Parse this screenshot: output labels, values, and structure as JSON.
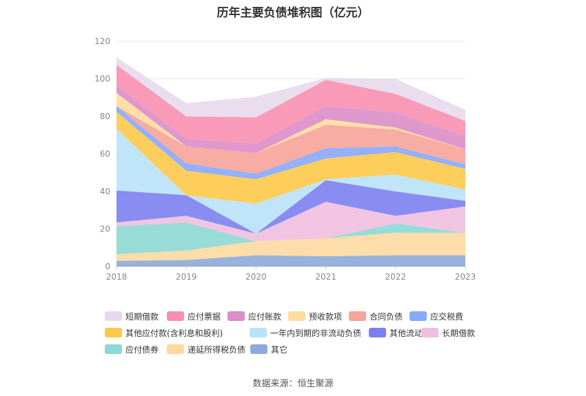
{
  "chart_data": {
    "type": "area",
    "stacked": true,
    "title": "历年主要负债堆积图（亿元）",
    "categories": [
      "2018",
      "2019",
      "2020",
      "2021",
      "2022",
      "2023"
    ],
    "ylim": [
      0,
      120
    ],
    "yticks": [
      0,
      20,
      40,
      60,
      80,
      100,
      120
    ],
    "grid": true,
    "legend_position": "bottom",
    "series": [
      {
        "name": "其它",
        "color": "#8eaad8",
        "values": [
          3,
          3.5,
          6,
          5.5,
          6,
          6
        ]
      },
      {
        "name": "递延所得税负债",
        "color": "#fdd9a0",
        "values": [
          3.5,
          5,
          7.5,
          9.5,
          12,
          12
        ]
      },
      {
        "name": "应付债券",
        "color": "#8dd8d4",
        "values": [
          15,
          15,
          0,
          0,
          5,
          0
        ]
      },
      {
        "name": "长期借款",
        "color": "#efbfdf",
        "values": [
          2,
          3.5,
          4,
          19.5,
          4,
          14
        ]
      },
      {
        "name": "其他流动负债",
        "color": "#7c7ff0",
        "values": [
          17,
          11,
          0,
          11.5,
          13,
          3
        ]
      },
      {
        "name": "一年内到期的非流动负债",
        "color": "#b9e2f8",
        "values": [
          33,
          0,
          16,
          0.5,
          9,
          6
        ]
      },
      {
        "name": "其他应付款(含利息和股利)",
        "color": "#fec94a",
        "values": [
          9,
          13,
          13,
          11,
          12,
          11
        ]
      },
      {
        "name": "应交税费",
        "color": "#88a8f8",
        "values": [
          3,
          4,
          3,
          5.5,
          3,
          2.5
        ]
      },
      {
        "name": "合同负债",
        "color": "#f6a39a",
        "values": [
          0,
          9,
          11,
          12.5,
          9,
          8
        ]
      },
      {
        "name": "预收款项",
        "color": "#fedc9e",
        "values": [
          7,
          0,
          0,
          3,
          1,
          0
        ]
      },
      {
        "name": "应付账款",
        "color": "#dc8dc5",
        "values": [
          4,
          4,
          5,
          7,
          8,
          7
        ]
      },
      {
        "name": "应付票据",
        "color": "#f88fb1",
        "values": [
          11,
          12,
          14,
          14,
          10,
          8
        ]
      },
      {
        "name": "短期借款",
        "color": "#e7d9ec",
        "values": [
          4,
          7,
          11,
          1,
          8,
          6
        ]
      }
    ],
    "legend_order": [
      "短期借款",
      "应付票据",
      "应付账款",
      "预收款项",
      "合同负债",
      "应交税费",
      "其他应付款(含利息和股利)",
      "一年内到期的非流动负债",
      "其他流动负债",
      "长期借款",
      "应付债券",
      "递延所得税负债",
      "其它"
    ]
  },
  "source": "数据来源：恒生聚源"
}
